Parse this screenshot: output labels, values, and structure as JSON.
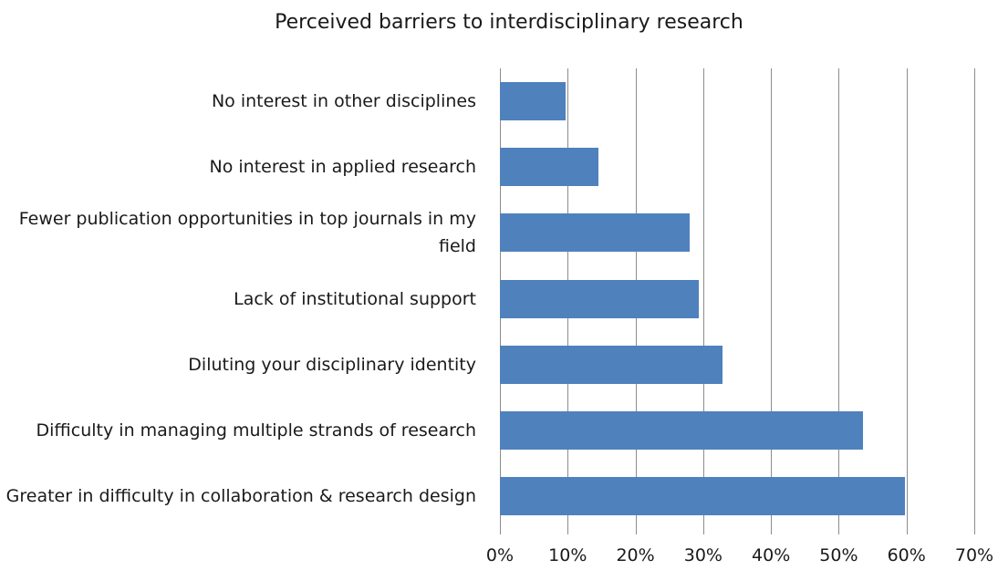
{
  "chart_data": {
    "type": "barh",
    "title": "Perceived barriers to interdisciplinary research",
    "categories": [
      "No interest in other disciplines",
      "No interest in applied research",
      "Fewer publication opportunities in top journals in my field",
      "Lack of institutional support",
      "Diluting your disciplinary identity",
      "Difficulty in managing multiple strands of research",
      "Greater in difficulty in collaboration & research design"
    ],
    "values": [
      9.7,
      14.5,
      28.0,
      29.3,
      32.8,
      53.6,
      59.8
    ],
    "color": "#4f81bd",
    "xlim": [
      0,
      70
    ],
    "xticks": [
      {
        "value": 0,
        "label": "0%"
      },
      {
        "value": 10,
        "label": "10%"
      },
      {
        "value": 20,
        "label": "20%"
      },
      {
        "value": 30,
        "label": "30%"
      },
      {
        "value": 40,
        "label": "40%"
      },
      {
        "value": 50,
        "label": "50%"
      },
      {
        "value": 60,
        "label": "60%"
      },
      {
        "value": 70,
        "label": "70%"
      }
    ],
    "grid": true
  }
}
